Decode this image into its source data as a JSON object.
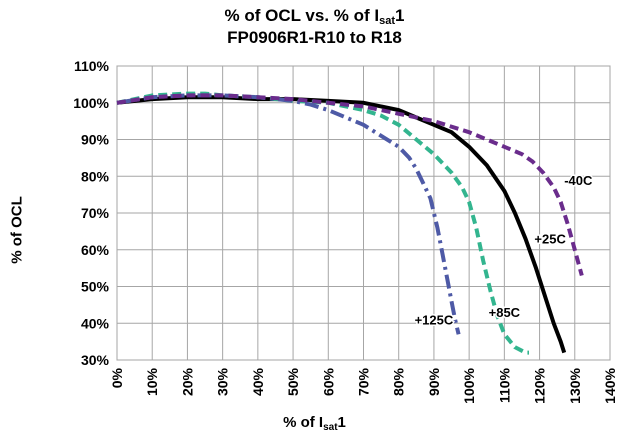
{
  "title": {
    "line1_prefix": "% of OCL vs. % of I",
    "line1_sub": "sat",
    "line1_suffix": "1",
    "line2": "FP0906R1-R10 to R18"
  },
  "axes": {
    "ylabel": "% of OCL",
    "xlabel_prefix": "% of I",
    "xlabel_sub": "sat",
    "xlabel_suffix": "1"
  },
  "chart_data": {
    "type": "line",
    "xlim": [
      0,
      140
    ],
    "ylim": [
      30,
      110
    ],
    "x_ticks": [
      0,
      10,
      20,
      30,
      40,
      50,
      60,
      70,
      80,
      90,
      100,
      110,
      120,
      130,
      140
    ],
    "x_tick_labels": [
      "0%",
      "10%",
      "20%",
      "30%",
      "40%",
      "50%",
      "60%",
      "70%",
      "80%",
      "90%",
      "100%",
      "110%",
      "120%",
      "130%",
      "140%"
    ],
    "y_ticks": [
      30,
      40,
      50,
      60,
      70,
      80,
      90,
      100,
      110
    ],
    "y_tick_labels": [
      "30%",
      "40%",
      "50%",
      "60%",
      "70%",
      "80%",
      "90%",
      "100%",
      "110%"
    ],
    "grid": true,
    "series": [
      {
        "name": "+25C",
        "color": "#000000",
        "dash": "solid",
        "x": [
          0,
          10,
          20,
          30,
          40,
          50,
          60,
          70,
          80,
          85,
          90,
          95,
          100,
          105,
          110,
          113,
          116,
          119,
          122,
          124,
          126,
          127
        ],
        "y": [
          100,
          101,
          101.5,
          101.5,
          101,
          101,
          100.5,
          100,
          98,
          96,
          94,
          92,
          88,
          83,
          76,
          70,
          63,
          55,
          46,
          40,
          35,
          32
        ]
      },
      {
        "name": "+85C",
        "color": "#33b58f",
        "dash": "dash",
        "x": [
          0,
          10,
          20,
          25,
          30,
          40,
          50,
          60,
          70,
          75,
          80,
          85,
          90,
          95,
          98,
          100,
          102,
          104,
          106,
          108,
          110,
          113,
          116,
          117
        ],
        "y": [
          100,
          102,
          102.5,
          102.5,
          102,
          101.5,
          100.5,
          100,
          98,
          96.5,
          94,
          90,
          86,
          81,
          77,
          73,
          66,
          57,
          49,
          42,
          37,
          33.5,
          32,
          32
        ]
      },
      {
        "name": "+125C",
        "color": "#4e5aa6",
        "dash": "dashdot",
        "x": [
          0,
          10,
          20,
          30,
          40,
          50,
          55,
          60,
          65,
          70,
          75,
          80,
          83,
          85,
          87,
          89,
          90,
          91,
          92,
          93,
          94,
          95,
          96,
          97
        ],
        "y": [
          100,
          101.5,
          102,
          102,
          101.5,
          100.5,
          99.5,
          98,
          96,
          94,
          91,
          88,
          85,
          82,
          78,
          74,
          70,
          66,
          61,
          56,
          51,
          46,
          41,
          37
        ]
      },
      {
        "name": "-40C",
        "color": "#6a2c8c",
        "dash": "dash",
        "x": [
          0,
          10,
          20,
          30,
          40,
          50,
          60,
          70,
          80,
          90,
          100,
          105,
          110,
          115,
          118,
          121,
          124,
          126,
          128,
          130,
          132
        ],
        "y": [
          100,
          101.5,
          102,
          102,
          101.5,
          101,
          100,
          99,
          97,
          95,
          92,
          90,
          88,
          86,
          84,
          81,
          77,
          73,
          67,
          60,
          53
        ]
      }
    ],
    "annotations": [
      {
        "text": "-40C",
        "x": 131,
        "y": 79
      },
      {
        "text": "+25C",
        "x": 123,
        "y": 63
      },
      {
        "text": "+85C",
        "x": 110,
        "y": 43
      },
      {
        "text": "+125C",
        "x": 90,
        "y": 41
      }
    ]
  }
}
